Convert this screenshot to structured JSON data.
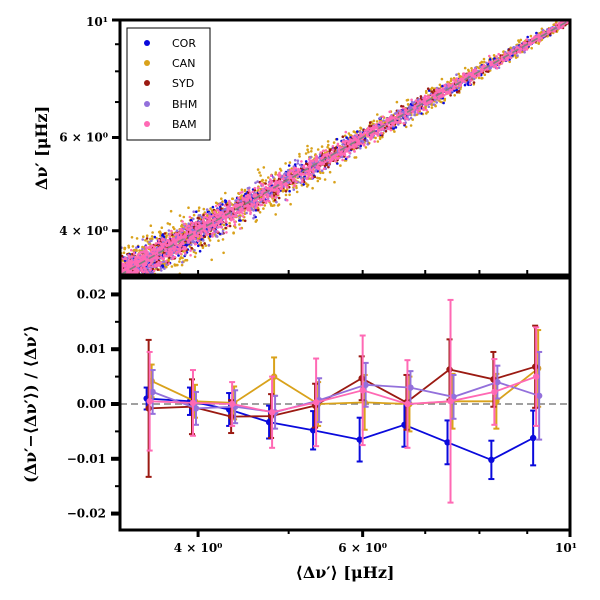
{
  "colors": {
    "COR": "#0a0adc",
    "CAN": "#d9a21b",
    "SYD": "#9b1a12",
    "BHM": "#9370db",
    "BAM": "#ff69b4"
  },
  "chart_data": [
    {
      "type": "scatter",
      "panel": "top",
      "xscale": "log",
      "yscale": "log",
      "xlim": [
        3.3,
        10
      ],
      "ylim": [
        3.3,
        10
      ],
      "ylabel": "Δν′ [μHz]",
      "yticks": [
        {
          "value": 4,
          "label": "4 × 10⁰"
        },
        {
          "value": 6,
          "label": "6 × 10⁰"
        },
        {
          "value": 10,
          "label": "10¹"
        }
      ],
      "reference_line": "y = x (dashed gray)",
      "legend": [
        "COR",
        "CAN",
        "SYD",
        "BHM",
        "BAM"
      ],
      "legend_position": "top-left",
      "scatter_model": {
        "description": "Dense point clouds along the 1:1 line; scatter narrows with increasing Δν",
        "series": [
          "CAN",
          "COR",
          "SYD",
          "BHM",
          "BAM"
        ],
        "relative_scatter_at_3.3": 0.035,
        "relative_scatter_at_10": 0.006
      }
    },
    {
      "type": "line",
      "panel": "bottom",
      "xscale": "log",
      "xlim": [
        3.3,
        10
      ],
      "ylim": [
        -0.023,
        0.023
      ],
      "xlabel": "⟨Δν′⟩ [μHz]",
      "ylabel": "(Δν′−⟨Δν′⟩) / ⟨Δν′⟩",
      "xticks": [
        {
          "value": 4,
          "label": "4 × 10⁰"
        },
        {
          "value": 6,
          "label": "6 × 10⁰"
        },
        {
          "value": 10,
          "label": "10¹"
        }
      ],
      "yticks": [
        {
          "value": 0.02,
          "label": "0.02"
        },
        {
          "value": 0.01,
          "label": "0.01"
        },
        {
          "value": 0.0,
          "label": "0.00"
        },
        {
          "value": -0.01,
          "label": "−0.01"
        },
        {
          "value": -0.02,
          "label": "−0.02"
        }
      ],
      "reference_line": "y = 0 (dashed gray)",
      "x": [
        3.55,
        3.95,
        4.35,
        4.8,
        5.35,
        6.0,
        6.7,
        7.45,
        8.3,
        9.2
      ],
      "series": [
        {
          "name": "COR",
          "values": [
            0.001,
            0.0005,
            -0.001,
            -0.0033,
            -0.0048,
            -0.0065,
            -0.0038,
            -0.007,
            -0.0102,
            -0.0062
          ],
          "errors": [
            0.002,
            0.0025,
            0.003,
            0.003,
            0.0035,
            0.004,
            0.004,
            0.004,
            0.0035,
            0.005
          ]
        },
        {
          "name": "CAN",
          "values": [
            0.0042,
            0.0005,
            0.0002,
            0.005,
            0.0,
            0.0003,
            0.0,
            0.0005,
            0.0005,
            0.0065
          ],
          "errors": [
            0.003,
            0.003,
            0.003,
            0.0035,
            0.004,
            0.005,
            0.005,
            0.005,
            0.005,
            0.007
          ]
        },
        {
          "name": "SYD",
          "values": [
            -0.0008,
            -0.0005,
            -0.0023,
            -0.0022,
            -0.0003,
            0.0047,
            0.0003,
            0.0063,
            0.0045,
            0.0068
          ],
          "errors": [
            0.0125,
            0.005,
            0.003,
            0.004,
            0.004,
            0.004,
            0.005,
            0.0055,
            0.005,
            0.0075
          ]
        },
        {
          "name": "BHM",
          "values": [
            0.0022,
            -0.0008,
            -0.0005,
            -0.0015,
            0.0007,
            0.0035,
            0.003,
            0.0013,
            0.004,
            0.0015
          ],
          "errors": [
            0.004,
            0.003,
            0.003,
            0.003,
            0.004,
            0.004,
            0.003,
            0.004,
            0.003,
            0.008
          ]
        },
        {
          "name": "BAM",
          "values": [
            0.0005,
            0.0002,
            0.0,
            -0.0015,
            0.0003,
            0.0025,
            0.0,
            0.0005,
            0.0022,
            0.005
          ],
          "errors": [
            0.009,
            0.006,
            0.004,
            0.0065,
            0.008,
            0.01,
            0.008,
            0.0185,
            0.006,
            0.009
          ]
        }
      ]
    }
  ]
}
